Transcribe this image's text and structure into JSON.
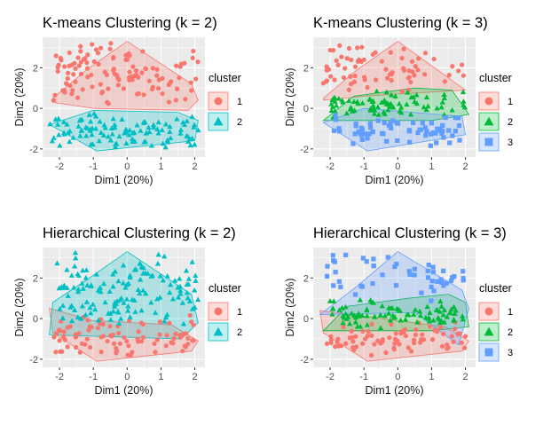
{
  "chart_data": [
    {
      "type": "scatter",
      "title": "K-means Clustering (k = 2)",
      "xlabel": "Dim1 (20%)",
      "ylabel": "Dim2 (20%)",
      "xlim": [
        -2.5,
        2.3
      ],
      "ylim": [
        -2.4,
        3.5
      ],
      "xticks": [
        "-2",
        "-1",
        "0",
        "1",
        "2"
      ],
      "yticks": [
        "-2",
        "0",
        "2"
      ],
      "legend_title": "cluster",
      "legend": [
        {
          "label": "1",
          "color": "#F8766D",
          "shape": "circle"
        },
        {
          "label": "2",
          "color": "#00BFC4",
          "shape": "triangle"
        }
      ],
      "hulls": [
        {
          "cluster": "1",
          "color": "#F8766D",
          "points": [
            [
              -2.2,
              0.5
            ],
            [
              -1.2,
              1.9
            ],
            [
              0.0,
              3.3
            ],
            [
              1.9,
              1.2
            ],
            [
              2.1,
              0.4
            ],
            [
              1.8,
              -0.1
            ],
            [
              -1.0,
              0.0
            ],
            [
              -2.2,
              0.3
            ]
          ]
        },
        {
          "cluster": "2",
          "color": "#00BFC4",
          "points": [
            [
              -2.3,
              -0.8
            ],
            [
              -1.0,
              -0.1
            ],
            [
              1.5,
              -0.2
            ],
            [
              2.1,
              -0.6
            ],
            [
              2.0,
              -1.6
            ],
            [
              -0.9,
              -2.1
            ],
            [
              -2.3,
              -0.8
            ]
          ]
        }
      ],
      "series": [
        {
          "name": "1",
          "color": "#F8766D",
          "shape": "circle",
          "n": 120,
          "region": [
            [
              -2.2,
              2.1
            ],
            [
              -0.05,
              3.3
            ]
          ]
        },
        {
          "name": "2",
          "color": "#00BFC4",
          "shape": "triangle",
          "n": 110,
          "region": [
            [
              -2.3,
              2.1
            ],
            [
              -2.1,
              -0.1
            ]
          ]
        }
      ]
    },
    {
      "type": "scatter",
      "title": "K-means Clustering (k = 3)",
      "xlabel": "Dim1 (20%)",
      "ylabel": "Dim2 (20%)",
      "xlim": [
        -2.5,
        2.3
      ],
      "ylim": [
        -2.4,
        3.5
      ],
      "xticks": [
        "-2",
        "-1",
        "0",
        "1",
        "2"
      ],
      "yticks": [
        "-2",
        "0",
        "2"
      ],
      "legend_title": "cluster",
      "legend": [
        {
          "label": "1",
          "color": "#F8766D",
          "shape": "circle"
        },
        {
          "label": "2",
          "color": "#00BA38",
          "shape": "triangle"
        },
        {
          "label": "3",
          "color": "#619CFF",
          "shape": "square"
        }
      ],
      "hulls": [
        {
          "cluster": "1",
          "color": "#F8766D",
          "points": [
            [
              -2.2,
              0.5
            ],
            [
              -1.2,
              1.9
            ],
            [
              0.0,
              3.3
            ],
            [
              2.0,
              0.9
            ],
            [
              1.0,
              0.8
            ],
            [
              -1.0,
              0.6
            ],
            [
              -2.2,
              0.4
            ]
          ]
        },
        {
          "cluster": "2",
          "color": "#00BA38",
          "points": [
            [
              -2.2,
              -0.6
            ],
            [
              -1.3,
              0.6
            ],
            [
              0.5,
              1.0
            ],
            [
              1.6,
              0.9
            ],
            [
              2.1,
              -0.3
            ],
            [
              1.0,
              -0.6
            ],
            [
              -2.2,
              -0.6
            ]
          ]
        },
        {
          "cluster": "3",
          "color": "#619CFF",
          "points": [
            [
              -2.2,
              -0.7
            ],
            [
              -1.0,
              0.0
            ],
            [
              1.9,
              -0.4
            ],
            [
              2.0,
              -1.3
            ],
            [
              -0.9,
              -2.1
            ],
            [
              -2.2,
              -0.7
            ]
          ]
        }
      ],
      "series": [
        {
          "name": "1",
          "color": "#F8766D",
          "shape": "circle",
          "n": 70,
          "region": [
            [
              -2.2,
              2.0
            ],
            [
              0.5,
              3.3
            ]
          ]
        },
        {
          "name": "2",
          "color": "#00BA38",
          "shape": "triangle",
          "n": 80,
          "region": [
            [
              -2.1,
              2.0
            ],
            [
              -0.5,
              0.9
            ]
          ]
        },
        {
          "name": "3",
          "color": "#619CFF",
          "shape": "square",
          "n": 70,
          "region": [
            [
              -2.1,
              1.9
            ],
            [
              -2.0,
              -0.2
            ]
          ]
        }
      ]
    },
    {
      "type": "scatter",
      "title": "Hierarchical Clustering (k = 2)",
      "xlabel": "Dim1 (20%)",
      "ylabel": "Dim2 (20%)",
      "xlim": [
        -2.5,
        2.3
      ],
      "ylim": [
        -2.4,
        3.5
      ],
      "xticks": [
        "-2",
        "-1",
        "0",
        "1",
        "2"
      ],
      "yticks": [
        "-2",
        "0",
        "2"
      ],
      "legend_title": "cluster",
      "legend": [
        {
          "label": "1",
          "color": "#F8766D",
          "shape": "circle"
        },
        {
          "label": "2",
          "color": "#00BFC4",
          "shape": "triangle"
        }
      ],
      "hulls": [
        {
          "cluster": "1",
          "color": "#F8766D",
          "points": [
            [
              -2.3,
              0.5
            ],
            [
              -1.0,
              -0.1
            ],
            [
              1.3,
              -0.3
            ],
            [
              2.1,
              -1.1
            ],
            [
              1.9,
              -1.6
            ],
            [
              -0.9,
              -2.1
            ],
            [
              -2.2,
              -0.7
            ],
            [
              -2.3,
              0.5
            ]
          ]
        },
        {
          "cluster": "2",
          "color": "#00BFC4",
          "points": [
            [
              -2.3,
              -0.8
            ],
            [
              -2.2,
              0.8
            ],
            [
              -1.2,
              1.9
            ],
            [
              0.0,
              3.3
            ],
            [
              1.9,
              1.2
            ],
            [
              2.1,
              -0.2
            ],
            [
              1.6,
              -1.0
            ],
            [
              -2.3,
              -0.8
            ]
          ]
        }
      ],
      "series": [
        {
          "name": "1",
          "color": "#F8766D",
          "shape": "circle",
          "n": 90,
          "region": [
            [
              -2.2,
              2.0
            ],
            [
              -2.0,
              0.2
            ]
          ]
        },
        {
          "name": "2",
          "color": "#00BFC4",
          "shape": "triangle",
          "n": 140,
          "region": [
            [
              -2.2,
              2.1
            ],
            [
              -0.6,
              3.3
            ]
          ]
        }
      ]
    },
    {
      "type": "scatter",
      "title": "Hierarchical Clustering (k = 3)",
      "xlabel": "Dim1 (20%)",
      "ylabel": "Dim2 (20%)",
      "xlim": [
        -2.5,
        2.3
      ],
      "ylim": [
        -2.4,
        3.5
      ],
      "xticks": [
        "-2",
        "-1",
        "0",
        "1",
        "2"
      ],
      "yticks": [
        "-2",
        "0",
        "2"
      ],
      "legend_title": "cluster",
      "legend": [
        {
          "label": "1",
          "color": "#F8766D",
          "shape": "circle"
        },
        {
          "label": "2",
          "color": "#00BA38",
          "shape": "triangle"
        },
        {
          "label": "3",
          "color": "#619CFF",
          "shape": "square"
        }
      ],
      "hulls": [
        {
          "cluster": "1",
          "color": "#F8766D",
          "points": [
            [
              -2.3,
              0.4
            ],
            [
              0.0,
              -0.1
            ],
            [
              1.4,
              -0.4
            ],
            [
              2.1,
              -1.1
            ],
            [
              1.9,
              -1.6
            ],
            [
              -0.9,
              -2.1
            ],
            [
              -2.2,
              -0.7
            ],
            [
              -2.3,
              0.4
            ]
          ]
        },
        {
          "cluster": "2",
          "color": "#00BA38",
          "points": [
            [
              -2.2,
              -0.6
            ],
            [
              -1.5,
              0.6
            ],
            [
              0.3,
              1.0
            ],
            [
              1.5,
              1.2
            ],
            [
              2.0,
              0.8
            ],
            [
              2.1,
              -0.4
            ],
            [
              1.0,
              -0.6
            ],
            [
              -2.2,
              -0.6
            ]
          ]
        },
        {
          "cluster": "3",
          "color": "#619CFF",
          "points": [
            [
              -2.3,
              0.2
            ],
            [
              -1.2,
              1.6
            ],
            [
              0.0,
              3.3
            ],
            [
              1.9,
              1.4
            ],
            [
              2.1,
              0.5
            ],
            [
              1.8,
              -1.3
            ],
            [
              0.5,
              0.3
            ],
            [
              -2.3,
              0.2
            ]
          ]
        }
      ],
      "series": [
        {
          "name": "1",
          "color": "#F8766D",
          "shape": "circle",
          "n": 80,
          "region": [
            [
              -2.2,
              2.0
            ],
            [
              -2.0,
              -0.1
            ]
          ]
        },
        {
          "name": "2",
          "color": "#00BA38",
          "shape": "triangle",
          "n": 90,
          "region": [
            [
              -2.1,
              2.0
            ],
            [
              -0.5,
              1.0
            ]
          ]
        },
        {
          "name": "3",
          "color": "#619CFF",
          "shape": "square",
          "n": 50,
          "region": [
            [
              -2.1,
              2.0
            ],
            [
              0.8,
              3.2
            ]
          ]
        }
      ]
    }
  ]
}
